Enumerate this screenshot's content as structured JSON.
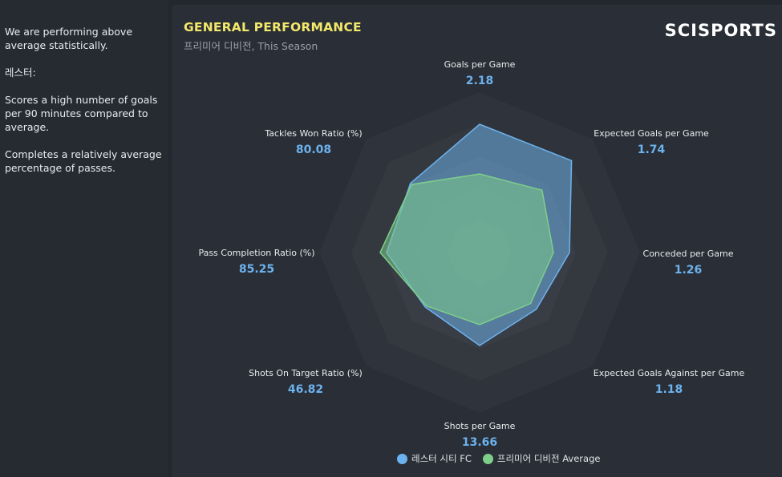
{
  "sidebar": {
    "paragraphs": [
      "We are performing above average statistically.",
      "레스터:",
      "Scores a high number of goals per 90 minutes compared to average.",
      "Completes a relatively average percentage of passes."
    ]
  },
  "header": {
    "title": "GENERAL PERFORMANCE",
    "subtitle": "프리미어 디비전, This Season",
    "logo": "SCISPORTS"
  },
  "colors": {
    "team": "#6cb2ee",
    "average": "#7dcf8a",
    "title": "#f2e86a"
  },
  "chart_data": {
    "type": "radar",
    "axes": [
      {
        "label": "Goals per Game",
        "value": "2.18"
      },
      {
        "label": "Expected Goals per Game",
        "value": "1.74"
      },
      {
        "label": "Conceded per Game",
        "value": "1.26"
      },
      {
        "label": "Expected Goals Against per Game",
        "value": "1.18"
      },
      {
        "label": "Shots per Game",
        "value": "13.66"
      },
      {
        "label": "Shots On Target Ratio (%)",
        "value": "46.82"
      },
      {
        "label": "Pass Completion Ratio (%)",
        "value": "85.25"
      },
      {
        "label": "Tackles Won Ratio (%)",
        "value": "80.08"
      }
    ],
    "rings": 5,
    "series": [
      {
        "name": "레스터 시티 FC",
        "normalized": [
          0.8,
          0.81,
          0.56,
          0.5,
          0.58,
          0.48,
          0.58,
          0.61
        ]
      },
      {
        "name": "프리미어 디비전 Average",
        "normalized": [
          0.49,
          0.55,
          0.46,
          0.45,
          0.45,
          0.47,
          0.62,
          0.6
        ]
      }
    ],
    "legend_position": "bottom"
  }
}
